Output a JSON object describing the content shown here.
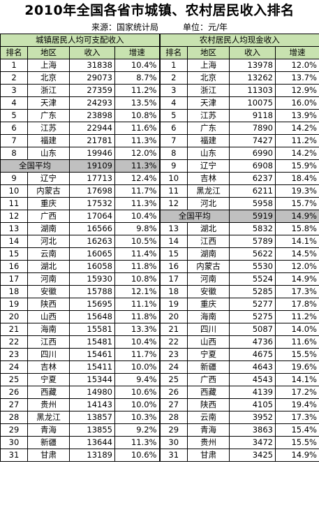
{
  "title": "2010年全国各省市城镇、农村居民收入排名",
  "source": "来源：国家统计局",
  "unit": "单位：元/年",
  "urban": {
    "section_title": "城镇居民人均可支配收入",
    "headers": [
      "排名",
      "地区",
      "收入",
      "增速"
    ],
    "average": {
      "label": "全国平均",
      "value": "19109",
      "growth": "11.3%",
      "after_rank": 8
    },
    "rows": [
      [
        "1",
        "上海",
        "31838",
        "10.4%"
      ],
      [
        "2",
        "北京",
        "29073",
        "8.7%"
      ],
      [
        "3",
        "浙江",
        "27359",
        "11.2%"
      ],
      [
        "4",
        "天津",
        "24293",
        "13.5%"
      ],
      [
        "5",
        "广东",
        "23898",
        "10.8%"
      ],
      [
        "6",
        "江苏",
        "22944",
        "11.6%"
      ],
      [
        "7",
        "福建",
        "21781",
        "11.3%"
      ],
      [
        "8",
        "山东",
        "19946",
        "12.0%"
      ],
      [
        "9",
        "辽宁",
        "17713",
        "12.4%"
      ],
      [
        "10",
        "内蒙古",
        "17698",
        "11.7%"
      ],
      [
        "11",
        "重庆",
        "17532",
        "11.3%"
      ],
      [
        "12",
        "广西",
        "17064",
        "10.4%"
      ],
      [
        "13",
        "湖南",
        "16566",
        "9.8%"
      ],
      [
        "14",
        "河北",
        "16263",
        "10.5%"
      ],
      [
        "15",
        "云南",
        "16065",
        "11.4%"
      ],
      [
        "16",
        "湖北",
        "16058",
        "11.8%"
      ],
      [
        "17",
        "河南",
        "15930",
        "10.8%"
      ],
      [
        "18",
        "安徽",
        "15788",
        "12.1%"
      ],
      [
        "19",
        "陕西",
        "15695",
        "11.1%"
      ],
      [
        "20",
        "山西",
        "15648",
        "11.8%"
      ],
      [
        "21",
        "海南",
        "15581",
        "13.3%"
      ],
      [
        "22",
        "江西",
        "15481",
        "10.4%"
      ],
      [
        "23",
        "四川",
        "15461",
        "11.7%"
      ],
      [
        "24",
        "吉林",
        "15411",
        "10.0%"
      ],
      [
        "25",
        "宁夏",
        "15344",
        "9.4%"
      ],
      [
        "26",
        "西藏",
        "14980",
        "10.6%"
      ],
      [
        "27",
        "贵州",
        "14143",
        "10.0%"
      ],
      [
        "28",
        "黑龙江",
        "13857",
        "10.3%"
      ],
      [
        "29",
        "青海",
        "13855",
        "9.2%"
      ],
      [
        "30",
        "新疆",
        "13644",
        "11.3%"
      ],
      [
        "31",
        "甘肃",
        "13189",
        "10.6%"
      ]
    ]
  },
  "rural": {
    "section_title": "农村居民人均现金收入",
    "headers": [
      "排名",
      "地区",
      "收入",
      "增速"
    ],
    "average": {
      "label": "全国平均",
      "value": "5919",
      "growth": "14.9%",
      "after_rank": 12
    },
    "rows": [
      [
        "1",
        "上海",
        "13978",
        "12.0%"
      ],
      [
        "2",
        "北京",
        "13262",
        "13.7%"
      ],
      [
        "3",
        "浙江",
        "11303",
        "12.9%"
      ],
      [
        "4",
        "天津",
        "10075",
        "16.0%"
      ],
      [
        "5",
        "江苏",
        "9118",
        "13.9%"
      ],
      [
        "6",
        "广东",
        "7890",
        "14.2%"
      ],
      [
        "7",
        "福建",
        "7427",
        "11.2%"
      ],
      [
        "8",
        "山东",
        "6990",
        "14.2%"
      ],
      [
        "9",
        "辽宁",
        "6908",
        "15.9%"
      ],
      [
        "10",
        "吉林",
        "6237",
        "18.4%"
      ],
      [
        "11",
        "黑龙江",
        "6211",
        "19.3%"
      ],
      [
        "12",
        "河北",
        "5958",
        "15.7%"
      ],
      [
        "13",
        "湖北",
        "5832",
        "15.8%"
      ],
      [
        "14",
        "江西",
        "5789",
        "14.1%"
      ],
      [
        "15",
        "湖南",
        "5622",
        "14.5%"
      ],
      [
        "16",
        "内蒙古",
        "5530",
        "12.0%"
      ],
      [
        "17",
        "河南",
        "5524",
        "14.9%"
      ],
      [
        "18",
        "安徽",
        "5285",
        "17.3%"
      ],
      [
        "19",
        "重庆",
        "5277",
        "17.8%"
      ],
      [
        "20",
        "海南",
        "5275",
        "11.2%"
      ],
      [
        "21",
        "四川",
        "5087",
        "14.0%"
      ],
      [
        "22",
        "山西",
        "4736",
        "11.6%"
      ],
      [
        "23",
        "宁夏",
        "4675",
        "15.5%"
      ],
      [
        "24",
        "新疆",
        "4643",
        "19.6%"
      ],
      [
        "25",
        "广西",
        "4543",
        "14.1%"
      ],
      [
        "26",
        "西藏",
        "4139",
        "17.2%"
      ],
      [
        "27",
        "陕西",
        "4105",
        "19.4%"
      ],
      [
        "28",
        "云南",
        "3952",
        "17.3%"
      ],
      [
        "29",
        "青海",
        "3863",
        "15.4%"
      ],
      [
        "30",
        "贵州",
        "3472",
        "15.5%"
      ],
      [
        "31",
        "甘肃",
        "3425",
        "14.9%"
      ]
    ]
  }
}
